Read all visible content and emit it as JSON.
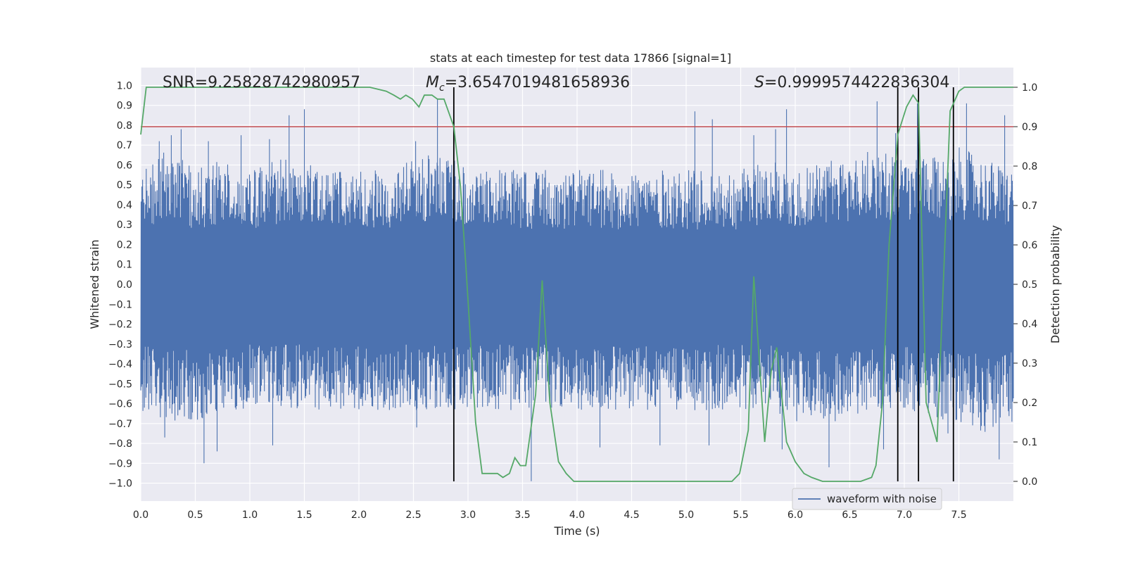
{
  "chart_data": {
    "type": "line",
    "title": "stats at each timestep for test data 17866 [signal=1]",
    "xlabel": "Time (s)",
    "ylabel": "Whitened strain",
    "y2label": "Detection probability",
    "xlim": [
      0.0,
      8.0
    ],
    "ylim": [
      -1.09,
      1.09
    ],
    "y2lim": [
      -0.05,
      1.05
    ],
    "xticks": [
      "0.0",
      "0.5",
      "1.0",
      "1.5",
      "2.0",
      "2.5",
      "3.0",
      "3.5",
      "4.0",
      "4.5",
      "5.0",
      "5.5",
      "6.0",
      "6.5",
      "7.0",
      "7.5"
    ],
    "yticks": [
      "1.0",
      "0.9",
      "0.8",
      "0.7",
      "0.6",
      "0.5",
      "0.4",
      "0.3",
      "0.2",
      "0.1",
      "0.0",
      "−0.1",
      "−0.2",
      "−0.3",
      "−0.4",
      "−0.5",
      "−0.6",
      "−0.7",
      "−0.8",
      "−0.9",
      "−1.0"
    ],
    "y2ticks": [
      "1.0",
      "0.9",
      "0.8",
      "0.7",
      "0.6",
      "0.5",
      "0.4",
      "0.3",
      "0.2",
      "0.1",
      "0.0"
    ],
    "annotations": {
      "snr": "SNR=9.25828742980957",
      "mc_symbol": "M",
      "mc_sub": "c",
      "mc_value": "=3.6547019481658936",
      "s_symbol": "S",
      "s_value": "=0.9999574422836304"
    },
    "threshold": {
      "value": 0.9,
      "color": "#c44e52"
    },
    "event_markers_x": [
      2.87,
      6.94,
      7.13,
      7.45
    ],
    "series": [
      {
        "name": "waveform with noise",
        "color": "#4c72b0",
        "axis": "left",
        "envelope_top": [
          [
            0.0,
            0.5
          ],
          [
            0.25,
            0.6
          ],
          [
            0.5,
            0.5
          ],
          [
            0.75,
            0.55
          ],
          [
            1.0,
            0.5
          ],
          [
            1.25,
            0.55
          ],
          [
            1.5,
            0.55
          ],
          [
            1.75,
            0.5
          ],
          [
            2.0,
            0.5
          ],
          [
            2.25,
            0.5
          ],
          [
            2.5,
            0.55
          ],
          [
            2.75,
            0.6
          ],
          [
            3.0,
            0.5
          ],
          [
            3.25,
            0.5
          ],
          [
            3.5,
            0.5
          ],
          [
            3.75,
            0.5
          ],
          [
            4.0,
            0.5
          ],
          [
            4.25,
            0.5
          ],
          [
            4.5,
            0.5
          ],
          [
            4.75,
            0.5
          ],
          [
            5.0,
            0.5
          ],
          [
            5.25,
            0.5
          ],
          [
            5.5,
            0.5
          ],
          [
            5.75,
            0.55
          ],
          [
            6.0,
            0.5
          ],
          [
            6.25,
            0.55
          ],
          [
            6.5,
            0.55
          ],
          [
            6.75,
            0.6
          ],
          [
            7.0,
            0.55
          ],
          [
            7.25,
            0.55
          ],
          [
            7.5,
            0.6
          ],
          [
            7.75,
            0.55
          ],
          [
            8.0,
            0.5
          ]
        ],
        "envelope_bottom": [
          [
            0.0,
            -0.55
          ],
          [
            0.25,
            -0.6
          ],
          [
            0.5,
            -0.6
          ],
          [
            0.75,
            -0.55
          ],
          [
            1.0,
            -0.55
          ],
          [
            1.25,
            -0.55
          ],
          [
            1.5,
            -0.55
          ],
          [
            1.75,
            -0.55
          ],
          [
            2.0,
            -0.55
          ],
          [
            2.25,
            -0.55
          ],
          [
            2.5,
            -0.55
          ],
          [
            2.75,
            -0.55
          ],
          [
            3.0,
            -0.55
          ],
          [
            3.25,
            -0.55
          ],
          [
            3.5,
            -0.55
          ],
          [
            3.75,
            -0.55
          ],
          [
            4.0,
            -0.55
          ],
          [
            4.25,
            -0.55
          ],
          [
            4.5,
            -0.55
          ],
          [
            4.75,
            -0.55
          ],
          [
            5.0,
            -0.55
          ],
          [
            5.25,
            -0.55
          ],
          [
            5.5,
            -0.55
          ],
          [
            5.75,
            -0.55
          ],
          [
            6.0,
            -0.6
          ],
          [
            6.25,
            -0.6
          ],
          [
            6.5,
            -0.6
          ],
          [
            6.75,
            -0.55
          ],
          [
            7.0,
            -0.55
          ],
          [
            7.25,
            -0.6
          ],
          [
            7.5,
            -0.6
          ],
          [
            7.75,
            -0.65
          ],
          [
            8.0,
            -0.6
          ]
        ],
        "spikes": [
          [
            0.17,
            0.72
          ],
          [
            0.28,
            0.75
          ],
          [
            0.37,
            0.78
          ],
          [
            0.62,
            0.72
          ],
          [
            0.92,
            0.75
          ],
          [
            1.18,
            0.73
          ],
          [
            1.36,
            0.85
          ],
          [
            1.5,
            0.88
          ],
          [
            2.72,
            0.93
          ],
          [
            2.52,
            0.72
          ],
          [
            5.08,
            0.87
          ],
          [
            5.24,
            0.83
          ],
          [
            5.62,
            0.75
          ],
          [
            5.82,
            0.78
          ],
          [
            5.92,
            0.88
          ],
          [
            6.75,
            0.92
          ],
          [
            6.92,
            0.76
          ],
          [
            7.12,
            0.91
          ],
          [
            7.57,
            0.91
          ],
          [
            7.92,
            0.85
          ],
          [
            0.58,
            -0.9
          ],
          [
            0.7,
            -0.84
          ],
          [
            1.21,
            -0.81
          ],
          [
            0.22,
            -0.77
          ],
          [
            2.53,
            -0.72
          ],
          [
            3.58,
            -0.99
          ],
          [
            4.21,
            -0.82
          ],
          [
            4.76,
            -0.81
          ],
          [
            5.21,
            -0.81
          ],
          [
            5.88,
            -0.83
          ],
          [
            6.31,
            -0.92
          ],
          [
            6.81,
            -0.83
          ],
          [
            7.87,
            -0.88
          ],
          [
            7.4,
            -0.75
          ]
        ]
      },
      {
        "name": "detection probability",
        "color": "#55a868",
        "axis": "right",
        "x": [
          0.0,
          0.05,
          0.1,
          0.2,
          0.4,
          0.7,
          1.0,
          1.4,
          1.8,
          2.1,
          2.25,
          2.32,
          2.38,
          2.43,
          2.49,
          2.55,
          2.6,
          2.67,
          2.72,
          2.78,
          2.87,
          2.93,
          2.98,
          3.07,
          3.13,
          3.22,
          3.27,
          3.32,
          3.38,
          3.43,
          3.48,
          3.53,
          3.62,
          3.68,
          3.75,
          3.83,
          3.9,
          3.97,
          4.1,
          4.4,
          4.8,
          5.05,
          5.25,
          5.42,
          5.49,
          5.57,
          5.62,
          5.72,
          5.78,
          5.83,
          5.92,
          6.0,
          6.08,
          6.15,
          6.25,
          6.4,
          6.6,
          6.7,
          6.74,
          6.8,
          6.86,
          6.94,
          7.02,
          7.08,
          7.13,
          7.2,
          7.3,
          7.42,
          7.5,
          7.55,
          7.6,
          7.68,
          8.0
        ],
        "y": [
          0.88,
          1.0,
          1.0,
          1.0,
          1.0,
          1.0,
          1.0,
          1.0,
          1.0,
          1.0,
          0.99,
          0.98,
          0.97,
          0.98,
          0.97,
          0.95,
          0.98,
          0.98,
          0.97,
          0.97,
          0.9,
          0.75,
          0.55,
          0.15,
          0.02,
          0.02,
          0.02,
          0.01,
          0.02,
          0.06,
          0.04,
          0.04,
          0.22,
          0.51,
          0.2,
          0.05,
          0.02,
          0.0,
          0.0,
          0.0,
          0.0,
          0.0,
          0.0,
          0.0,
          0.02,
          0.13,
          0.52,
          0.1,
          0.28,
          0.34,
          0.1,
          0.05,
          0.02,
          0.01,
          0.0,
          0.0,
          0.0,
          0.01,
          0.04,
          0.2,
          0.6,
          0.88,
          0.95,
          0.98,
          0.96,
          0.2,
          0.1,
          0.94,
          0.99,
          1.0,
          1.0,
          1.0,
          1.0
        ]
      }
    ],
    "legend": {
      "label": "waveform with noise",
      "loc": "lower-right"
    },
    "grid": true
  }
}
